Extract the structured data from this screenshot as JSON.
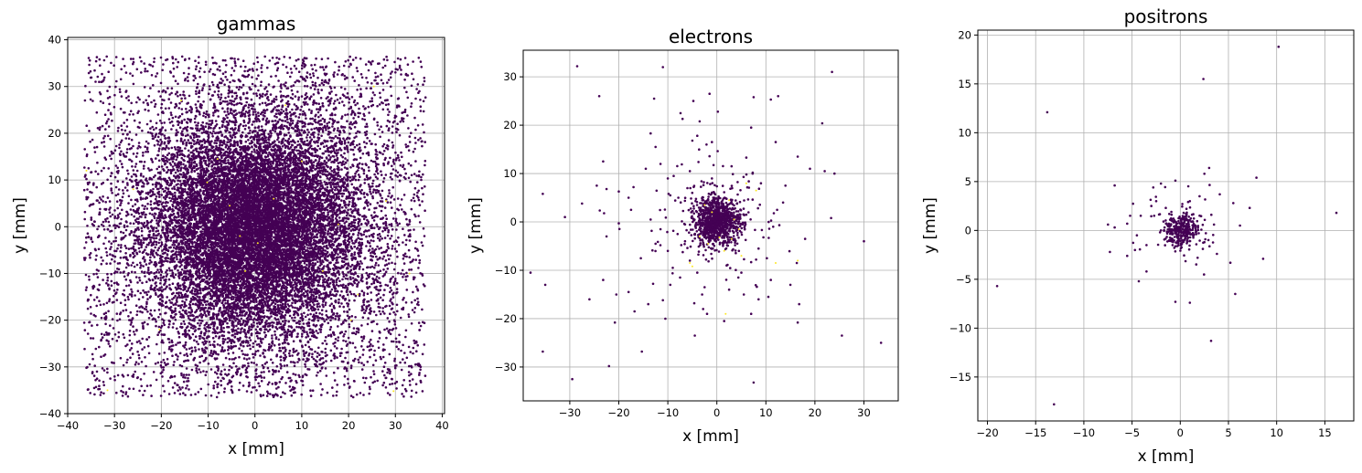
{
  "chart_data": [
    {
      "type": "scatter",
      "title": "gammas",
      "xlabel": "x [mm]",
      "ylabel": "y [mm]",
      "xlim": [
        -40,
        40.5
      ],
      "ylim": [
        -40,
        40.5
      ],
      "xticks": [
        -40,
        -30,
        -20,
        -10,
        0,
        10,
        20,
        30,
        40
      ],
      "yticks": [
        -40,
        -30,
        -20,
        -10,
        0,
        10,
        20,
        30,
        40
      ],
      "grid": true,
      "colors": {
        "main": "#440154",
        "highlight": "#fde725"
      },
      "distribution": {
        "core_sigma": 10,
        "extent": 36.5
      },
      "points": [
        [
          -35.5,
          36.1
        ],
        [
          -33.2,
          35.8
        ],
        [
          -30.1,
          34.5
        ],
        [
          -26.0,
          35.9
        ],
        [
          -21.5,
          36.0
        ],
        [
          -16.4,
          35.2
        ],
        [
          -12.0,
          36.3
        ],
        [
          -6.8,
          35.6
        ],
        [
          0.5,
          36.2
        ],
        [
          5.2,
          35.9
        ],
        [
          10.4,
          35.4
        ],
        [
          15.6,
          36.0
        ],
        [
          21.0,
          35.7
        ],
        [
          26.3,
          34.9
        ],
        [
          31.1,
          35.8
        ],
        [
          35.4,
          35.3
        ],
        [
          -36.2,
          30.1
        ],
        [
          -35.4,
          20.5
        ],
        [
          -36.0,
          10.2
        ],
        [
          -35.8,
          0.2
        ],
        [
          -36.1,
          -10.3
        ],
        [
          -35.3,
          -20.4
        ],
        [
          -36.0,
          -30.2
        ],
        [
          -35.6,
          -34.8
        ],
        [
          35.9,
          30.4
        ],
        [
          36.1,
          20.2
        ],
        [
          35.5,
          10.6
        ],
        [
          36.0,
          -0.4
        ],
        [
          35.7,
          -10.1
        ],
        [
          36.2,
          -20.6
        ],
        [
          35.4,
          -30.0
        ],
        [
          35.8,
          -35.2
        ],
        [
          -33.0,
          -36.0
        ],
        [
          -27.5,
          -35.4
        ],
        [
          -22.1,
          -36.2
        ],
        [
          -16.0,
          -35.8
        ],
        [
          -10.5,
          -36.1
        ],
        [
          -4.8,
          -35.5
        ],
        [
          1.2,
          -36.0
        ],
        [
          6.4,
          -35.7
        ],
        [
          12.0,
          -36.2
        ],
        [
          17.5,
          -35.3
        ],
        [
          23.2,
          -36.0
        ],
        [
          28.4,
          -35.6
        ],
        [
          33.5,
          -35.1
        ]
      ],
      "highlight_points": [
        [
          -31.5,
          -35.0
        ],
        [
          -26.0,
          8.0
        ],
        [
          -20.4,
          -22.0
        ],
        [
          -15.8,
          27.0
        ],
        [
          -10.2,
          9.5
        ],
        [
          -8.0,
          14.5
        ],
        [
          -5.4,
          4.5
        ],
        [
          -3.2,
          -2.0
        ],
        [
          -2.1,
          -9.5
        ],
        [
          0.6,
          -3.5
        ],
        [
          4.0,
          6.0
        ],
        [
          6.5,
          26.0
        ],
        [
          10.0,
          14.0
        ],
        [
          14.5,
          -9.5
        ],
        [
          17.8,
          0.5
        ],
        [
          20.5,
          -20.0
        ],
        [
          22.0,
          -14.5
        ],
        [
          25.4,
          30.0
        ],
        [
          28.0,
          5.5
        ],
        [
          29.6,
          -35.2
        ],
        [
          -36.0,
          12.0
        ],
        [
          33.0,
          -10.0
        ]
      ]
    },
    {
      "type": "scatter",
      "title": "electrons",
      "xlabel": "x [mm]",
      "ylabel": "y [mm]",
      "xlim": [
        -39.5,
        37
      ],
      "ylim": [
        -37,
        35.5
      ],
      "xticks": [
        -30,
        -20,
        -10,
        0,
        10,
        20,
        30
      ],
      "yticks": [
        -30,
        -20,
        -10,
        0,
        10,
        20,
        30
      ],
      "grid": true,
      "colors": {
        "main": "#440154",
        "highlight": "#fde725"
      },
      "distribution": {
        "core_sigma": 2.3,
        "core_count": 900,
        "halo_count": 180
      },
      "points": [
        [
          -28.5,
          32.2
        ],
        [
          -11.0,
          32.0
        ],
        [
          23.5,
          31.0
        ],
        [
          -24.0,
          26.0
        ],
        [
          -12.8,
          25.5
        ],
        [
          -4.8,
          25.0
        ],
        [
          -1.5,
          26.5
        ],
        [
          7.5,
          25.8
        ],
        [
          11.0,
          25.3
        ],
        [
          12.5,
          26.0
        ],
        [
          0.2,
          22.8
        ],
        [
          21.5,
          20.4
        ],
        [
          -7.4,
          22.5
        ],
        [
          -7.0,
          21.3
        ],
        [
          -3.5,
          20.8
        ],
        [
          -4.0,
          17.8
        ],
        [
          -2.1,
          16.0
        ],
        [
          -5.0,
          16.8
        ],
        [
          -13.5,
          18.3
        ],
        [
          -1.0,
          16.5
        ],
        [
          7.0,
          19.5
        ],
        [
          12.0,
          16.5
        ],
        [
          -12.5,
          15.5
        ],
        [
          -23.2,
          12.5
        ],
        [
          -14.5,
          11.0
        ],
        [
          -11.5,
          12.0
        ],
        [
          6.0,
          13.3
        ],
        [
          16.5,
          13.5
        ],
        [
          -35.5,
          5.8
        ],
        [
          -22.5,
          6.8
        ],
        [
          -20.0,
          6.3
        ],
        [
          -17.0,
          7.2
        ],
        [
          -10.0,
          9.0
        ],
        [
          -8.8,
          9.5
        ],
        [
          -5.5,
          10.5
        ],
        [
          7.3,
          10.0
        ],
        [
          19.0,
          11.0
        ],
        [
          22.0,
          10.5
        ],
        [
          -27.5,
          3.8
        ],
        [
          -24.5,
          7.5
        ],
        [
          -23.0,
          1.8
        ],
        [
          -18.0,
          5.0
        ],
        [
          -20.0,
          -0.3
        ],
        [
          -13.5,
          0.5
        ],
        [
          -9.5,
          5.5
        ],
        [
          6.0,
          1.5
        ],
        [
          12.3,
          2.5
        ],
        [
          13.5,
          4.0
        ],
        [
          -22.5,
          -3.0
        ],
        [
          -12.5,
          -4.5
        ],
        [
          -10.0,
          -6.0
        ],
        [
          -8.0,
          -2.5
        ],
        [
          -6.5,
          -4.0
        ],
        [
          4.5,
          -6.0
        ],
        [
          8.5,
          -5.5
        ],
        [
          10.2,
          -7.5
        ],
        [
          -15.5,
          -7.5
        ],
        [
          -9.0,
          -9.5
        ],
        [
          -7.5,
          -11.5
        ],
        [
          -5.5,
          -8.0
        ],
        [
          -2.5,
          -13.5
        ],
        [
          -4.0,
          -10.5
        ],
        [
          5.0,
          -10.5
        ],
        [
          8.0,
          -7.8
        ],
        [
          11.0,
          -12.0
        ],
        [
          16.3,
          -8.5
        ],
        [
          -26.0,
          -16.0
        ],
        [
          -23.2,
          -12.0
        ],
        [
          -20.5,
          -15.0
        ],
        [
          -18.0,
          -14.5
        ],
        [
          -13.0,
          -12.8
        ],
        [
          -14.0,
          -17.0
        ],
        [
          -11.0,
          -16.2
        ],
        [
          -9.5,
          -13.0
        ],
        [
          -3.0,
          -15.0
        ],
        [
          -2.0,
          -19.0
        ],
        [
          2.5,
          -14.0
        ],
        [
          5.5,
          -15.0
        ],
        [
          8.5,
          -16.0
        ],
        [
          10.5,
          -15.5
        ],
        [
          15.0,
          -13.0
        ],
        [
          16.8,
          -17.0
        ],
        [
          -38.0,
          -10.5
        ],
        [
          -35.0,
          -13.0
        ],
        [
          -20.8,
          -20.8
        ],
        [
          -16.8,
          -18.5
        ],
        [
          -15.3,
          -26.8
        ],
        [
          -10.5,
          -20.0
        ],
        [
          -4.5,
          -23.5
        ],
        [
          7.0,
          -19.0
        ],
        [
          16.5,
          -20.8
        ],
        [
          25.5,
          -23.5
        ],
        [
          33.5,
          -25.0
        ],
        [
          -35.5,
          -26.8
        ],
        [
          -29.5,
          -32.5
        ],
        [
          -22.0,
          -29.8
        ],
        [
          7.5,
          -33.2
        ],
        [
          23.3,
          0.8
        ],
        [
          24.0,
          10.0
        ],
        [
          -2.8,
          -18.0
        ],
        [
          1.5,
          -20.5
        ],
        [
          -31.0,
          1.0
        ],
        [
          30.0,
          -4.0
        ],
        [
          18.0,
          -3.5
        ],
        [
          -17.5,
          2.5
        ],
        [
          14.0,
          7.5
        ],
        [
          3.0,
          11.5
        ],
        [
          -1.0,
          9.0
        ],
        [
          9.0,
          8.0
        ],
        [
          -6.0,
          7.0
        ],
        [
          2.0,
          -9.0
        ],
        [
          -11.5,
          -1.5
        ],
        [
          11.5,
          -1.0
        ]
      ],
      "highlight_points": [
        [
          6.0,
          8.0
        ],
        [
          8.0,
          6.5
        ],
        [
          2.5,
          4.5
        ],
        [
          -2.5,
          3.5
        ],
        [
          3.5,
          0.5
        ],
        [
          -3.5,
          -3.0
        ],
        [
          -1.8,
          -4.5
        ],
        [
          0.5,
          -3.2
        ],
        [
          3.0,
          -3.5
        ],
        [
          -5.5,
          -8.5
        ],
        [
          -5.0,
          -9.2
        ],
        [
          5.0,
          -7.0
        ],
        [
          1.8,
          -19.0
        ],
        [
          12.0,
          -8.5
        ],
        [
          16.5,
          -8.0
        ],
        [
          4.5,
          -1.5
        ],
        [
          -1.0,
          2.0
        ],
        [
          1.5,
          -6.0
        ]
      ]
    },
    {
      "type": "scatter",
      "title": "positrons",
      "xlabel": "x [mm]",
      "ylabel": "y [mm]",
      "xlim": [
        -21,
        18
      ],
      "ylim": [
        -19.5,
        20.5
      ],
      "xticks": [
        -20,
        -15,
        -10,
        -5,
        0,
        5,
        10,
        15
      ],
      "yticks": [
        -15,
        -10,
        -5,
        0,
        5,
        10,
        15,
        20
      ],
      "grid": true,
      "colors": {
        "main": "#440154",
        "highlight": "#fde725"
      },
      "distribution": {
        "core_sigma": 0.9,
        "core_count": 300,
        "halo_count": 45
      },
      "points": [
        [
          10.2,
          18.8
        ],
        [
          2.4,
          15.5
        ],
        [
          -13.8,
          12.1
        ],
        [
          3.0,
          6.4
        ],
        [
          2.5,
          5.8
        ],
        [
          7.9,
          5.4
        ],
        [
          -0.5,
          5.1
        ],
        [
          -6.8,
          4.6
        ],
        [
          -2.8,
          4.4
        ],
        [
          -2.0,
          4.8
        ],
        [
          4.1,
          3.7
        ],
        [
          2.0,
          3.5
        ],
        [
          -3.0,
          2.5
        ],
        [
          5.5,
          2.8
        ],
        [
          -4.1,
          1.5
        ],
        [
          -5.2,
          1.5
        ],
        [
          -1.5,
          2.3
        ],
        [
          7.2,
          2.3
        ],
        [
          16.2,
          1.8
        ],
        [
          6.2,
          0.5
        ],
        [
          -5.5,
          0.7
        ],
        [
          3.5,
          0.6
        ],
        [
          -7.5,
          0.6
        ],
        [
          -6.8,
          0.3
        ],
        [
          -2.0,
          0.0
        ],
        [
          -4.5,
          -0.5
        ],
        [
          2.5,
          -1.2
        ],
        [
          -3.5,
          -1.5
        ],
        [
          -4.7,
          -2.0
        ],
        [
          -7.3,
          -2.2
        ],
        [
          -5.5,
          -2.6
        ],
        [
          3.8,
          -2.4
        ],
        [
          1.8,
          -2.8
        ],
        [
          5.2,
          -3.3
        ],
        [
          8.6,
          -2.9
        ],
        [
          -3.5,
          -4.2
        ],
        [
          -4.3,
          -5.2
        ],
        [
          5.7,
          -6.5
        ],
        [
          -0.5,
          -7.3
        ],
        [
          1.0,
          -7.4
        ],
        [
          -19.0,
          -5.7
        ],
        [
          3.2,
          -11.3
        ],
        [
          -13.1,
          -17.8
        ],
        [
          -2.5,
          3.0
        ],
        [
          1.0,
          3.0
        ]
      ],
      "highlight_points": []
    }
  ]
}
